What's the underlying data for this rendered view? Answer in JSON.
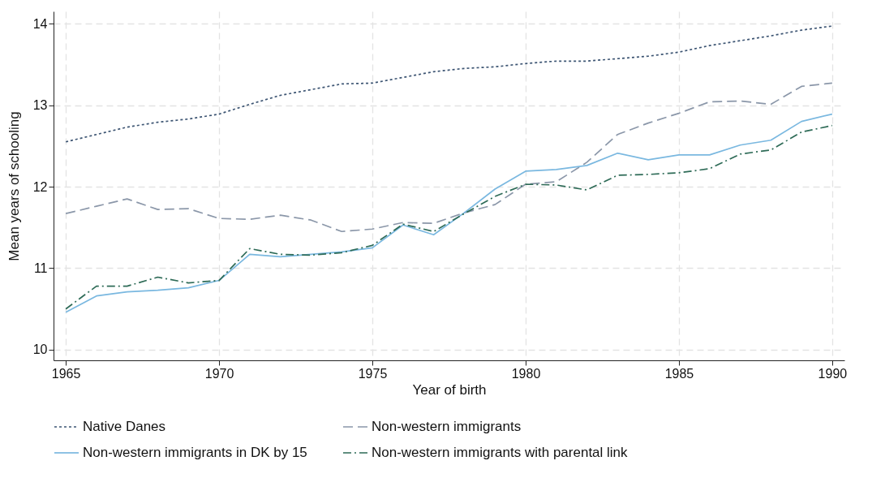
{
  "chart_data": {
    "type": "line",
    "xlabel": "Year of birth",
    "ylabel": "Mean years of schooling",
    "x": [
      1965,
      1966,
      1967,
      1968,
      1969,
      1970,
      1971,
      1972,
      1973,
      1974,
      1975,
      1976,
      1977,
      1978,
      1979,
      1980,
      1981,
      1982,
      1983,
      1984,
      1985,
      1986,
      1987,
      1988,
      1989,
      1990
    ],
    "xlim": [
      1964.6,
      1990.4
    ],
    "xticks": [
      1965,
      1970,
      1975,
      1980,
      1985,
      1990
    ],
    "ylim": [
      9.87,
      14.15
    ],
    "yticks": [
      10,
      11,
      12,
      13,
      14
    ],
    "grid": true,
    "legend": "bottom",
    "series": [
      {
        "name": "Native Danes",
        "color": "#3d5573",
        "line_style": "dotted",
        "values": [
          12.55,
          12.64,
          12.73,
          12.79,
          12.83,
          12.89,
          13.01,
          13.12,
          13.19,
          13.26,
          13.27,
          13.34,
          13.41,
          13.45,
          13.47,
          13.51,
          13.54,
          13.54,
          13.57,
          13.6,
          13.65,
          13.73,
          13.79,
          13.85,
          13.92,
          13.97
        ]
      },
      {
        "name": "Non-western immigrants",
        "color": "#8b97a9",
        "line_style": "dashed",
        "values": [
          11.67,
          11.76,
          11.85,
          11.72,
          11.73,
          11.61,
          11.6,
          11.65,
          11.59,
          11.45,
          11.48,
          11.56,
          11.55,
          11.68,
          11.78,
          12.03,
          12.06,
          12.3,
          12.64,
          12.78,
          12.9,
          13.04,
          13.05,
          13.01,
          13.23,
          13.27
        ]
      },
      {
        "name": "Non-western immigrants in DK by 15",
        "color": "#7ab8e0",
        "line_style": "solid",
        "values": [
          10.46,
          10.66,
          10.71,
          10.73,
          10.76,
          10.85,
          11.17,
          11.14,
          11.17,
          11.2,
          11.25,
          11.53,
          11.41,
          11.68,
          11.97,
          12.19,
          12.21,
          12.26,
          12.41,
          12.33,
          12.39,
          12.39,
          12.51,
          12.57,
          12.8,
          12.89
        ]
      },
      {
        "name": "Non-western immigrants with parental link",
        "color": "#2e6b57",
        "line_style": "dashdot",
        "values": [
          10.5,
          10.78,
          10.78,
          10.89,
          10.82,
          10.85,
          11.24,
          11.17,
          11.16,
          11.19,
          11.28,
          11.54,
          11.45,
          11.67,
          11.88,
          12.03,
          12.02,
          11.96,
          12.14,
          12.15,
          12.17,
          12.22,
          12.4,
          12.45,
          12.67,
          12.75
        ]
      }
    ]
  }
}
